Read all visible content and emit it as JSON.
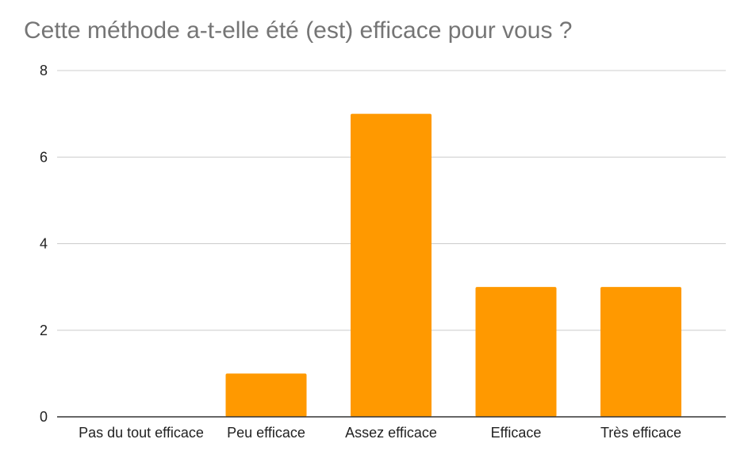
{
  "chart_data": {
    "type": "bar",
    "title": "Cette méthode a-t-elle été (est) efficace pour vous ?",
    "categories": [
      "Pas du tout efficace",
      "Peu efficace",
      "Assez efficace",
      "Efficace",
      "Très efficace"
    ],
    "values": [
      0,
      1,
      7,
      3,
      3
    ],
    "yticks": [
      "0",
      "2",
      "4",
      "6",
      "8"
    ],
    "ylim": [
      0,
      8
    ],
    "xlabel": "",
    "ylabel": "",
    "grid": true,
    "legend": "none",
    "bar_color": "#FF9900"
  }
}
